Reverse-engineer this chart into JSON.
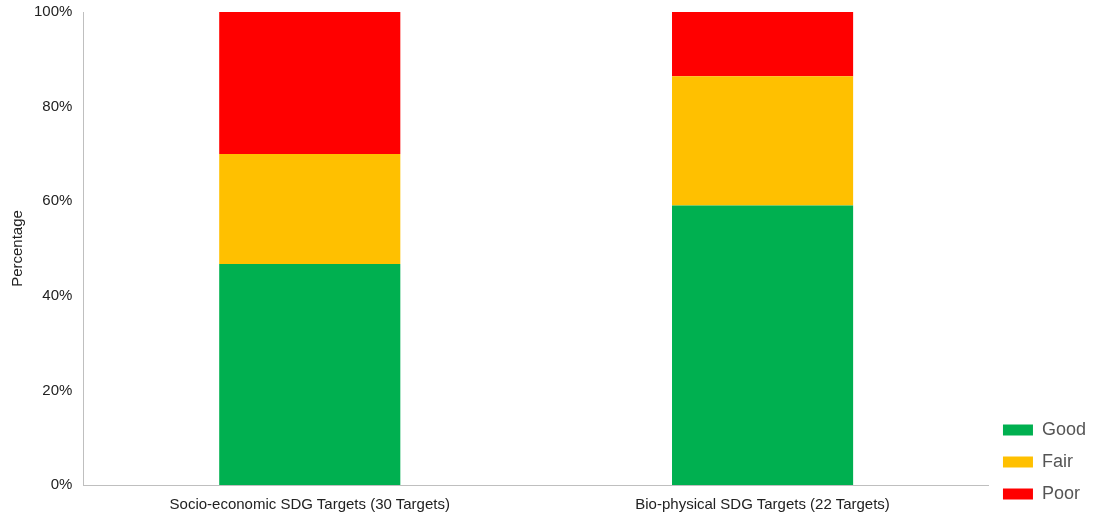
{
  "chart_data": {
    "type": "bar",
    "stacked": true,
    "ylabel": "Percentage",
    "categories": [
      "Socio-economic SDG Targets (30 Targets)",
      "Bio-physical SDG Targets (22 Targets)"
    ],
    "series": [
      {
        "name": "Good",
        "color": "#00b050",
        "values": [
          46.7,
          59.1
        ]
      },
      {
        "name": "Fair",
        "color": "#ffc000",
        "values": [
          23.3,
          27.3
        ]
      },
      {
        "name": "Poor",
        "color": "#ff0000",
        "values": [
          30,
          13.6
        ]
      }
    ],
    "ylim": [
      0,
      100
    ],
    "yticks": [
      {
        "value": 0,
        "label": "0%"
      },
      {
        "value": 20,
        "label": "20%"
      },
      {
        "value": 40,
        "label": "40%"
      },
      {
        "value": 60,
        "label": "60%"
      },
      {
        "value": 80,
        "label": "80%"
      },
      {
        "value": 100,
        "label": "100%"
      }
    ],
    "grid": false,
    "legend": "bottom right"
  }
}
